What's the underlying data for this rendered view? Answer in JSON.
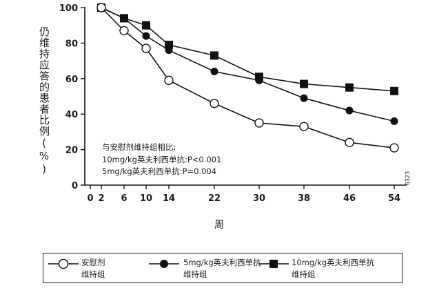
{
  "chart_data": {
    "type": "line",
    "title": "",
    "ylabel": "仍维持应答的患者比例(%)",
    "xlabel": "周",
    "ylim": [
      0,
      100
    ],
    "x_ticks": [
      0,
      2,
      6,
      10,
      14,
      22,
      30,
      38,
      46,
      54
    ],
    "y_ticks": [
      0,
      20,
      40,
      60,
      80,
      100
    ],
    "grid": false,
    "legend_position": "bottom",
    "series": [
      {
        "name": "安慰剂维持组",
        "marker": "open-circle",
        "x": [
          2,
          6,
          10,
          14,
          22,
          30,
          38,
          46,
          54
        ],
        "y": [
          100,
          87,
          77,
          59,
          46,
          35,
          33,
          24,
          21
        ]
      },
      {
        "name": "5mg/kg英夫利西单抗维持组",
        "marker": "filled-circle",
        "x": [
          2,
          6,
          10,
          14,
          22,
          30,
          38,
          46,
          54
        ],
        "y": [
          100,
          94,
          84,
          76,
          64,
          59,
          49,
          42,
          36
        ]
      },
      {
        "name": "10mg/kg英夫利西单抗维持组",
        "marker": "filled-square",
        "x": [
          2,
          6,
          10,
          14,
          22,
          30,
          38,
          46,
          54
        ],
        "y": [
          100,
          94,
          90,
          79,
          73,
          61,
          57,
          55,
          53
        ]
      }
    ],
    "annotations": [
      "与安慰剂维持组相比:",
      "10mg/kg英夫利西单抗:P<0.001",
      "5mg/kg英夫利西单抗:P=0.004"
    ],
    "side_code": "6323"
  },
  "legend": {
    "items": [
      {
        "line1": "安慰剂",
        "line2": "维持组"
      },
      {
        "line1": "5mg/kg英夫利西单抗",
        "line2": "维持组"
      },
      {
        "line1": "10mg/kg英夫利西单抗",
        "line2": "维持组"
      }
    ]
  }
}
